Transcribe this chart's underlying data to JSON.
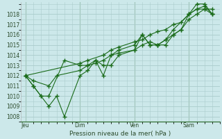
{
  "background_color": "#cce8ea",
  "grid_color": "#aacccc",
  "line_color": "#1a6b1a",
  "marker_color": "#1a6b1a",
  "xlabel": "Pression niveau de la mer( hPa )",
  "ylim": [
    1007.5,
    1019.2
  ],
  "yticks": [
    1008,
    1009,
    1010,
    1011,
    1012,
    1013,
    1014,
    1015,
    1016,
    1017,
    1018
  ],
  "xtick_labels": [
    "Jeu",
    "Dim",
    "Ven",
    "Sam"
  ],
  "xtick_positions": [
    0.0,
    3.5,
    7.0,
    10.5
  ],
  "series": [
    {
      "x": [
        0.0,
        0.5,
        1.5,
        2.0,
        3.5,
        4.0,
        4.5,
        5.0,
        5.5,
        6.0,
        7.0,
        7.5,
        8.0,
        8.5,
        9.0,
        9.5,
        10.0,
        10.5,
        11.0,
        11.5,
        12.0
      ],
      "y": [
        1012.0,
        1011.5,
        1011.0,
        1012.0,
        1012.5,
        1013.0,
        1013.2,
        1013.5,
        1014.0,
        1014.2,
        1014.5,
        1015.0,
        1015.3,
        1015.0,
        1015.5,
        1016.0,
        1016.5,
        1017.5,
        1018.0,
        1018.5,
        1018.0
      ]
    },
    {
      "x": [
        0.0,
        0.5,
        1.0,
        1.5,
        2.0,
        2.5,
        3.5,
        4.0,
        4.5,
        5.0,
        5.5,
        6.0,
        7.0,
        7.5,
        8.0,
        8.5,
        9.0,
        9.5,
        10.5,
        11.0,
        11.5,
        12.0
      ],
      "y": [
        1012.0,
        1011.0,
        1010.0,
        1009.0,
        1010.0,
        1008.0,
        1012.0,
        1012.5,
        1013.5,
        1013.0,
        1013.0,
        1014.0,
        1014.5,
        1016.0,
        1015.0,
        1015.0,
        1015.5,
        1016.5,
        1018.0,
        1019.0,
        1019.0,
        1018.0
      ]
    },
    {
      "x": [
        0.0,
        0.5,
        1.0,
        1.5,
        2.5,
        3.5,
        4.0,
        4.5,
        5.0,
        5.5,
        6.0,
        7.0,
        7.5,
        8.0,
        8.5,
        9.0,
        9.5,
        10.0,
        10.5,
        11.0,
        11.5,
        12.0
      ],
      "y": [
        1012.0,
        1011.0,
        1010.0,
        1010.0,
        1013.5,
        1013.0,
        1013.0,
        1013.5,
        1012.0,
        1014.0,
        1014.5,
        1015.0,
        1016.0,
        1015.0,
        1015.0,
        1015.0,
        1016.0,
        1016.5,
        1018.0,
        1018.5,
        1018.5,
        1018.5
      ]
    },
    {
      "x": [
        0.0,
        3.5,
        4.0,
        5.0,
        5.5,
        6.0,
        7.0,
        7.5,
        8.0,
        8.5,
        9.0,
        9.5,
        10.0,
        10.5,
        11.0,
        11.5,
        12.0
      ],
      "y": [
        1012.0,
        1013.2,
        1013.5,
        1014.0,
        1014.5,
        1014.8,
        1015.3,
        1015.5,
        1016.0,
        1016.3,
        1016.5,
        1017.0,
        1017.2,
        1018.0,
        1018.5,
        1018.8,
        1018.0
      ]
    }
  ],
  "vlines_x": [
    0.0,
    3.5,
    7.0,
    10.5
  ],
  "xlim": [
    -0.3,
    12.5
  ],
  "figsize": [
    3.2,
    2.0
  ],
  "dpi": 100
}
